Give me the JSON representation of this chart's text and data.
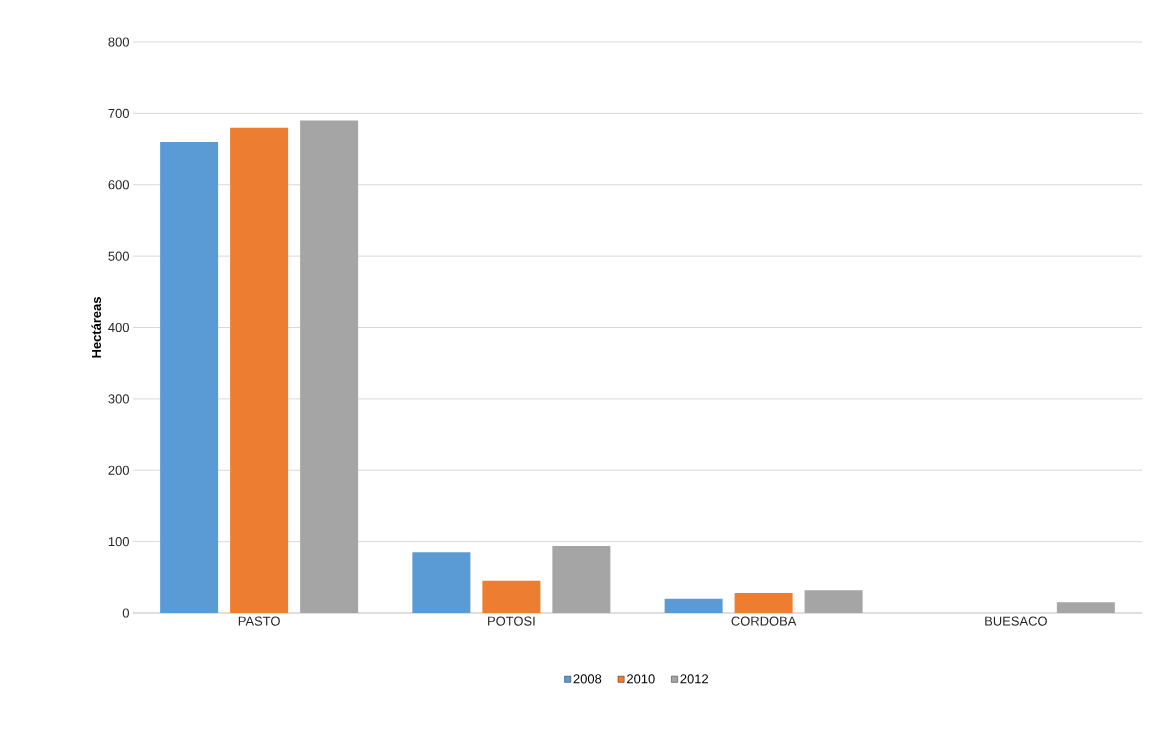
{
  "chart_data": {
    "type": "bar",
    "ylabel": "Hectáreas",
    "categories": [
      "PASTO",
      "POTOSI",
      "CORDOBA",
      "BUESACO"
    ],
    "series": [
      {
        "name": "2008",
        "color": "#5b9bd5",
        "values": [
          660,
          85,
          20,
          null
        ]
      },
      {
        "name": "2010",
        "color": "#ed7d31",
        "values": [
          680,
          45,
          28,
          null
        ]
      },
      {
        "name": "2012",
        "color": "#a5a5a5",
        "values": [
          690,
          94,
          32,
          15
        ]
      }
    ],
    "ylim": [
      0,
      800
    ],
    "yticks": [
      0,
      100,
      200,
      300,
      400,
      500,
      600,
      700,
      800
    ],
    "grid": "y",
    "legend": "bottom"
  }
}
